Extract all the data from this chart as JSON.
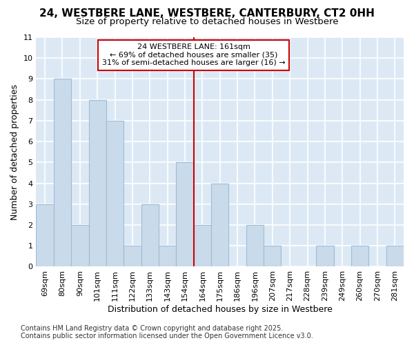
{
  "title": "24, WESTBERE LANE, WESTBERE, CANTERBURY, CT2 0HH",
  "subtitle": "Size of property relative to detached houses in Westbere",
  "categories": [
    "69sqm",
    "80sqm",
    "90sqm",
    "101sqm",
    "111sqm",
    "122sqm",
    "133sqm",
    "143sqm",
    "154sqm",
    "164sqm",
    "175sqm",
    "186sqm",
    "196sqm",
    "207sqm",
    "217sqm",
    "228sqm",
    "239sqm",
    "249sqm",
    "260sqm",
    "270sqm",
    "281sqm"
  ],
  "values": [
    3,
    9,
    2,
    8,
    7,
    1,
    3,
    1,
    5,
    2,
    4,
    0,
    2,
    1,
    0,
    0,
    1,
    0,
    1,
    0,
    1
  ],
  "bar_color": "#c9daea",
  "bar_edge_color": "#a0bcd4",
  "plot_bg_color": "#dce9f5",
  "fig_bg_color": "#ffffff",
  "grid_color": "#ffffff",
  "ylabel": "Number of detached properties",
  "xlabel": "Distribution of detached houses by size in Westbere",
  "ylim": [
    0,
    11
  ],
  "yticks": [
    0,
    1,
    2,
    3,
    4,
    5,
    6,
    7,
    8,
    9,
    10,
    11
  ],
  "ref_line_index": 9,
  "ref_line_label": "24 WESTBERE LANE: 161sqm",
  "ref_line_smaller": "← 69% of detached houses are smaller (35)",
  "ref_line_larger": "31% of semi-detached houses are larger (16) →",
  "annotation_box_color": "#ffffff",
  "annotation_border_color": "#cc0000",
  "ref_line_color": "#cc0000",
  "footer_line1": "Contains HM Land Registry data © Crown copyright and database right 2025.",
  "footer_line2": "Contains public sector information licensed under the Open Government Licence v3.0.",
  "title_fontsize": 11,
  "subtitle_fontsize": 9.5,
  "axis_label_fontsize": 9,
  "tick_fontsize": 8,
  "annotation_fontsize": 8,
  "footer_fontsize": 7
}
